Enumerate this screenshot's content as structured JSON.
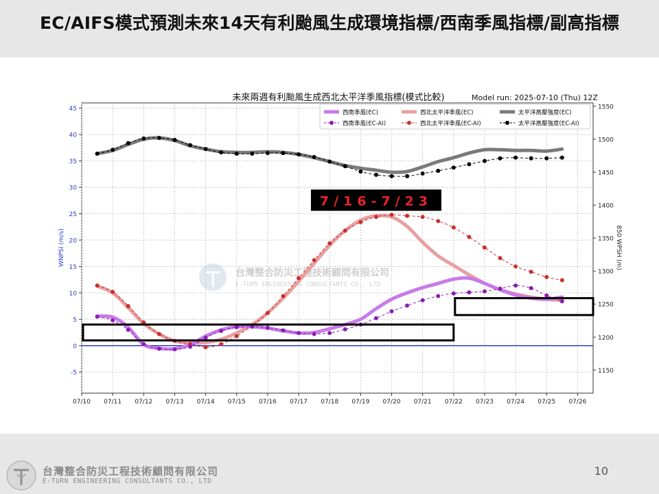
{
  "slide": {
    "title": "EC/AIFS模式預測未來14天有利颱風生成環境指標/西南季風指標/副高指標",
    "page_number": "10",
    "company_cn": "台灣整合防災工程技術顧問有限公司",
    "company_en": "E-TURN ENGINEERING CONSULTANTS CO., LTD"
  },
  "watermark": {
    "cn": "台灣整合防災工程技術顧問有限公司",
    "en": "E-TURN ENGINEERING CONSULTANTS CO., LTD"
  },
  "chart_data": {
    "type": "line",
    "title": "未來兩週有利颱風生成西北太平洋季風指標(模式比較)",
    "subtitle": "Model run: 2025-07-10 (Thu) 12Z",
    "ylabel": "WNPSI (m/s)",
    "ylabel_right": "850 WPSH (m)",
    "ylim": [
      -9,
      46
    ],
    "ylim_right": [
      1115,
      1555
    ],
    "xlim": [
      "07/10 00Z",
      "07/26 12Z"
    ],
    "grid": true,
    "legend_position": "top-right",
    "x_ticks": [
      "07/10",
      "07/11",
      "07/12",
      "07/13",
      "07/14",
      "07/15",
      "07/16",
      "07/17",
      "07/18",
      "07/19",
      "07/20",
      "07/21",
      "07/22",
      "07/23",
      "07/24",
      "07/25",
      "07/26"
    ],
    "y_ticks": [
      -5,
      0,
      5,
      10,
      15,
      20,
      25,
      30,
      35,
      40,
      45
    ],
    "y_ticks_right": [
      1150,
      1200,
      1250,
      1300,
      1350,
      1400,
      1450,
      1500,
      1550
    ],
    "zero_line": 0,
    "annotation": {
      "text": "7/16-7/23",
      "color": "#e8232a",
      "background": "#000000"
    },
    "highlight_boxes": [
      {
        "x": [
          "07/10 00Z",
          "07/22 00Z"
        ],
        "y": [
          1,
          4
        ]
      },
      {
        "x": [
          "07/22 00Z",
          "07/26 12Z"
        ],
        "y": [
          5.8,
          9
        ]
      }
    ],
    "series": [
      {
        "name": "西南季風(EC)",
        "axis": "left",
        "style": "thick",
        "color": "#c77be8",
        "x": [
          "07/10 12Z",
          "07/11 00Z",
          "07/11 12Z",
          "07/12 00Z",
          "07/12 12Z",
          "07/13 00Z",
          "07/13 12Z",
          "07/14 00Z",
          "07/14 12Z",
          "07/15 00Z",
          "07/15 12Z",
          "07/16 00Z",
          "07/16 12Z",
          "07/17 00Z",
          "07/17 12Z",
          "07/18 00Z",
          "07/18 12Z",
          "07/19 00Z",
          "07/19 12Z",
          "07/20 00Z",
          "07/20 12Z",
          "07/21 00Z",
          "07/21 12Z",
          "07/22 00Z",
          "07/22 12Z",
          "07/23 00Z",
          "07/23 12Z",
          "07/24 00Z",
          "07/24 12Z",
          "07/25 00Z",
          "07/25 12Z"
        ],
        "values": [
          5.6,
          5.4,
          3.5,
          0.2,
          -0.5,
          -0.6,
          0.2,
          1.8,
          3.0,
          3.6,
          3.6,
          3.3,
          2.8,
          2.4,
          2.5,
          3.2,
          4.0,
          5.0,
          7.0,
          8.8,
          10.0,
          11.0,
          11.8,
          12.6,
          12.8,
          11.8,
          10.6,
          9.6,
          9.0,
          8.8,
          9.2
        ]
      },
      {
        "name": "西南季風(EC-AI)",
        "axis": "left",
        "style": "dotted",
        "color": "#8a1db5",
        "x": [
          "07/10 12Z",
          "07/11 00Z",
          "07/11 12Z",
          "07/12 00Z",
          "07/12 12Z",
          "07/13 00Z",
          "07/13 12Z",
          "07/14 00Z",
          "07/14 12Z",
          "07/15 00Z",
          "07/15 12Z",
          "07/16 00Z",
          "07/16 12Z",
          "07/17 00Z",
          "07/17 12Z",
          "07/18 00Z",
          "07/18 12Z",
          "07/19 00Z",
          "07/19 12Z",
          "07/20 00Z",
          "07/20 12Z",
          "07/21 00Z",
          "07/21 12Z",
          "07/22 00Z",
          "07/22 12Z",
          "07/23 00Z",
          "07/23 12Z",
          "07/24 00Z",
          "07/24 12Z",
          "07/25 00Z",
          "07/25 12Z"
        ],
        "values": [
          5.5,
          4.8,
          3.0,
          0.3,
          -0.6,
          -0.7,
          -0.2,
          1.5,
          2.8,
          3.5,
          3.6,
          3.4,
          2.9,
          2.4,
          2.2,
          2.4,
          3.1,
          4.0,
          5.2,
          6.5,
          7.6,
          8.6,
          9.4,
          9.9,
          10.1,
          10.3,
          10.8,
          11.4,
          10.9,
          9.5,
          8.4
        ]
      },
      {
        "name": "西北太平洋季風(EC)",
        "axis": "left",
        "style": "thick",
        "color": "#e8a0a0",
        "x": [
          "07/10 12Z",
          "07/11 00Z",
          "07/11 12Z",
          "07/12 00Z",
          "07/12 12Z",
          "07/13 00Z",
          "07/13 12Z",
          "07/14 00Z",
          "07/14 12Z",
          "07/15 00Z",
          "07/15 12Z",
          "07/16 00Z",
          "07/16 12Z",
          "07/17 00Z",
          "07/17 12Z",
          "07/18 00Z",
          "07/18 12Z",
          "07/19 00Z",
          "07/19 12Z",
          "07/20 00Z",
          "07/20 12Z",
          "07/21 00Z",
          "07/21 12Z",
          "07/22 00Z",
          "07/22 12Z",
          "07/23 00Z",
          "07/23 12Z",
          "07/24 00Z",
          "07/24 12Z",
          "07/25 00Z",
          "07/25 12Z"
        ],
        "values": [
          11.3,
          10.0,
          7.2,
          4.2,
          2.2,
          0.9,
          0.5,
          0.6,
          1.2,
          2.4,
          4.0,
          6.2,
          9.0,
          12.2,
          15.6,
          19.0,
          21.8,
          23.8,
          24.6,
          24.4,
          22.6,
          19.6,
          17.0,
          15.2,
          13.4,
          11.8,
          10.6,
          9.8,
          9.2,
          8.8,
          8.6
        ]
      },
      {
        "name": "西北太平洋季風(EC-AI)",
        "axis": "left",
        "style": "dotted",
        "color": "#c93030",
        "x": [
          "07/10 12Z",
          "07/11 00Z",
          "07/11 12Z",
          "07/12 00Z",
          "07/12 12Z",
          "07/13 00Z",
          "07/13 12Z",
          "07/14 00Z",
          "07/14 12Z",
          "07/15 00Z",
          "07/15 12Z",
          "07/16 00Z",
          "07/16 12Z",
          "07/17 00Z",
          "07/17 12Z",
          "07/18 00Z",
          "07/18 12Z",
          "07/19 00Z",
          "07/19 12Z",
          "07/20 00Z",
          "07/20 12Z",
          "07/21 00Z",
          "07/21 12Z",
          "07/22 00Z",
          "07/22 12Z",
          "07/23 00Z",
          "07/23 12Z",
          "07/24 00Z",
          "07/24 12Z",
          "07/25 00Z",
          "07/25 12Z"
        ],
        "values": [
          11.4,
          10.2,
          7.5,
          4.4,
          2.2,
          0.9,
          0.3,
          -0.3,
          0.3,
          1.8,
          3.8,
          6.2,
          9.4,
          12.8,
          16.2,
          19.4,
          21.8,
          23.4,
          24.4,
          24.8,
          24.6,
          24.4,
          23.6,
          22.4,
          20.6,
          18.6,
          16.6,
          15.0,
          14.0,
          13.0,
          12.4
        ]
      },
      {
        "name": "太平洋高壓強度(EC)",
        "axis": "right",
        "style": "thick",
        "color": "#7a7a7a",
        "x": [
          "07/10 12Z",
          "07/11 00Z",
          "07/11 12Z",
          "07/12 00Z",
          "07/12 12Z",
          "07/13 00Z",
          "07/13 12Z",
          "07/14 00Z",
          "07/14 12Z",
          "07/15 00Z",
          "07/15 12Z",
          "07/16 00Z",
          "07/16 12Z",
          "07/17 00Z",
          "07/17 12Z",
          "07/18 00Z",
          "07/18 12Z",
          "07/19 00Z",
          "07/19 12Z",
          "07/20 00Z",
          "07/20 12Z",
          "07/21 00Z",
          "07/21 12Z",
          "07/22 00Z",
          "07/22 12Z",
          "07/23 00Z",
          "07/23 12Z",
          "07/24 00Z",
          "07/24 12Z",
          "07/25 00Z",
          "07/25 12Z"
        ],
        "values": [
          1478,
          1483,
          1492,
          1500,
          1502,
          1498,
          1490,
          1485,
          1481,
          1480,
          1480,
          1481,
          1480,
          1477,
          1472,
          1466,
          1460,
          1456,
          1453,
          1450,
          1451,
          1458,
          1466,
          1472,
          1479,
          1484,
          1484,
          1483,
          1483,
          1482,
          1485
        ]
      },
      {
        "name": "太平洋高壓強度(EC-AI)",
        "axis": "right",
        "style": "dotted",
        "color": "#000000",
        "x": [
          "07/10 12Z",
          "07/11 00Z",
          "07/11 12Z",
          "07/12 00Z",
          "07/12 12Z",
          "07/13 00Z",
          "07/13 12Z",
          "07/14 00Z",
          "07/14 12Z",
          "07/15 00Z",
          "07/15 12Z",
          "07/16 00Z",
          "07/16 12Z",
          "07/17 00Z",
          "07/17 12Z",
          "07/18 00Z",
          "07/18 12Z",
          "07/19 00Z",
          "07/19 12Z",
          "07/20 00Z",
          "07/20 12Z",
          "07/21 00Z",
          "07/21 12Z",
          "07/22 00Z",
          "07/22 12Z",
          "07/23 00Z",
          "07/23 12Z",
          "07/24 00Z",
          "07/24 12Z",
          "07/25 00Z",
          "07/25 12Z"
        ],
        "values": [
          1478,
          1484,
          1494,
          1501,
          1502,
          1499,
          1491,
          1485,
          1480,
          1478,
          1478,
          1479,
          1479,
          1477,
          1473,
          1466,
          1459,
          1451,
          1446,
          1444,
          1444,
          1448,
          1452,
          1457,
          1462,
          1467,
          1471,
          1472,
          1471,
          1471,
          1472
        ]
      }
    ]
  }
}
